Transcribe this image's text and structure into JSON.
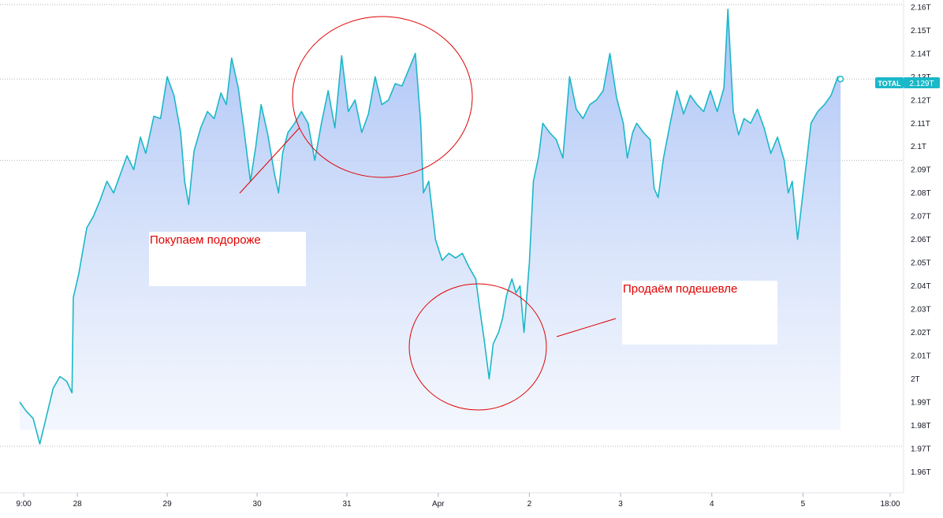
{
  "chart_data": {
    "type": "area",
    "series": [
      {
        "name": "TOTAL",
        "last_value_label": "2.129T",
        "color": "#1ab8c8",
        "points": [
          [
            0,
            1.99
          ],
          [
            0.5,
            1.986
          ],
          [
            1,
            1.983
          ],
          [
            1.5,
            1.972
          ],
          [
            2,
            1.984
          ],
          [
            2.5,
            1.996
          ],
          [
            3,
            2.001
          ],
          [
            3.5,
            1.999
          ],
          [
            3.9,
            1.994
          ],
          [
            4,
            2.035
          ],
          [
            4.4,
            2.045
          ],
          [
            5,
            2.065
          ],
          [
            5.5,
            2.07
          ],
          [
            6,
            2.077
          ],
          [
            6.5,
            2.085
          ],
          [
            7,
            2.08
          ],
          [
            7.5,
            2.088
          ],
          [
            8,
            2.096
          ],
          [
            8.5,
            2.09
          ],
          [
            9,
            2.104
          ],
          [
            9.4,
            2.097
          ],
          [
            10,
            2.113
          ],
          [
            10.5,
            2.112
          ],
          [
            11,
            2.13
          ],
          [
            11.5,
            2.122
          ],
          [
            12,
            2.106
          ],
          [
            12.3,
            2.085
          ],
          [
            12.6,
            2.075
          ],
          [
            13,
            2.098
          ],
          [
            13.5,
            2.108
          ],
          [
            14,
            2.115
          ],
          [
            14.5,
            2.112
          ],
          [
            15,
            2.123
          ],
          [
            15.4,
            2.118
          ],
          [
            15.8,
            2.138
          ],
          [
            16.3,
            2.125
          ],
          [
            16.7,
            2.108
          ],
          [
            17.2,
            2.085
          ],
          [
            17.6,
            2.1
          ],
          [
            18,
            2.118
          ],
          [
            18.5,
            2.105
          ],
          [
            19,
            2.088
          ],
          [
            19.3,
            2.08
          ],
          [
            19.6,
            2.097
          ],
          [
            20,
            2.106
          ],
          [
            20.5,
            2.11
          ],
          [
            21,
            2.115
          ],
          [
            21.5,
            2.11
          ],
          [
            22,
            2.094
          ],
          [
            22.5,
            2.11
          ],
          [
            23,
            2.124
          ],
          [
            23.5,
            2.108
          ],
          [
            24,
            2.139
          ],
          [
            24.5,
            2.115
          ],
          [
            25,
            2.12
          ],
          [
            25.5,
            2.106
          ],
          [
            26,
            2.114
          ],
          [
            26.5,
            2.13
          ],
          [
            27,
            2.118
          ],
          [
            27.5,
            2.12
          ],
          [
            28,
            2.127
          ],
          [
            28.5,
            2.126
          ],
          [
            29,
            2.133
          ],
          [
            29.5,
            2.14
          ],
          [
            29.9,
            2.11
          ],
          [
            30.1,
            2.08
          ],
          [
            30.5,
            2.085
          ],
          [
            31,
            2.06
          ],
          [
            31.5,
            2.051
          ],
          [
            32,
            2.054
          ],
          [
            32.5,
            2.052
          ],
          [
            33,
            2.054
          ],
          [
            33.5,
            2.048
          ],
          [
            34,
            2.043
          ],
          [
            34.3,
            2.03
          ],
          [
            34.6,
            2.018
          ],
          [
            35,
            2.0
          ],
          [
            35.3,
            2.015
          ],
          [
            35.7,
            2.02
          ],
          [
            36,
            2.026
          ],
          [
            36.3,
            2.036
          ],
          [
            36.7,
            2.043
          ],
          [
            37,
            2.037
          ],
          [
            37.3,
            2.04
          ],
          [
            37.6,
            2.02
          ],
          [
            38,
            2.05
          ],
          [
            38.3,
            2.085
          ],
          [
            38.7,
            2.096
          ],
          [
            39,
            2.11
          ],
          [
            39.5,
            2.106
          ],
          [
            40,
            2.103
          ],
          [
            40.5,
            2.095
          ],
          [
            41,
            2.13
          ],
          [
            41.5,
            2.116
          ],
          [
            42,
            2.112
          ],
          [
            42.5,
            2.118
          ],
          [
            43,
            2.12
          ],
          [
            43.5,
            2.124
          ],
          [
            44,
            2.14
          ],
          [
            44.5,
            2.121
          ],
          [
            45,
            2.11
          ],
          [
            45.3,
            2.095
          ],
          [
            45.7,
            2.106
          ],
          [
            46,
            2.11
          ],
          [
            46.5,
            2.106
          ],
          [
            47,
            2.103
          ],
          [
            47.3,
            2.082
          ],
          [
            47.6,
            2.078
          ],
          [
            48,
            2.095
          ],
          [
            48.5,
            2.11
          ],
          [
            49,
            2.124
          ],
          [
            49.5,
            2.114
          ],
          [
            50,
            2.122
          ],
          [
            50.5,
            2.118
          ],
          [
            51,
            2.115
          ],
          [
            51.5,
            2.124
          ],
          [
            52,
            2.115
          ],
          [
            52.5,
            2.125
          ],
          [
            52.8,
            2.159
          ],
          [
            53.2,
            2.115
          ],
          [
            53.6,
            2.105
          ],
          [
            54,
            2.112
          ],
          [
            54.5,
            2.11
          ],
          [
            55,
            2.116
          ],
          [
            55.5,
            2.108
          ],
          [
            56,
            2.097
          ],
          [
            56.5,
            2.104
          ],
          [
            57,
            2.094
          ],
          [
            57.3,
            2.08
          ],
          [
            57.6,
            2.085
          ],
          [
            58,
            2.06
          ],
          [
            58.3,
            2.075
          ],
          [
            58.6,
            2.09
          ],
          [
            59,
            2.11
          ],
          [
            59.5,
            2.115
          ],
          [
            60,
            2.118
          ],
          [
            60.5,
            2.122
          ],
          [
            61,
            2.13
          ],
          [
            61.2,
            2.129
          ]
        ]
      }
    ],
    "x_axis": {
      "ticks": [
        {
          "at": 0.3,
          "label": "9:00"
        },
        {
          "at": 4.3,
          "label": "28"
        },
        {
          "at": 11.0,
          "label": "29"
        },
        {
          "at": 17.7,
          "label": "30"
        },
        {
          "at": 24.4,
          "label": "31"
        },
        {
          "at": 31.2,
          "label": "Apr"
        },
        {
          "at": 38.0,
          "label": "2"
        },
        {
          "at": 44.8,
          "label": "3"
        },
        {
          "at": 51.6,
          "label": "4"
        },
        {
          "at": 58.4,
          "label": "5"
        },
        {
          "at": 64.9,
          "label": "18:00"
        }
      ],
      "xlim": [
        0,
        65.9
      ]
    },
    "y_axis": {
      "ylim": [
        1.951,
        2.163
      ],
      "ticks": [
        {
          "value": 1.96,
          "label": "1.96T"
        },
        {
          "value": 1.97,
          "label": "1.97T"
        },
        {
          "value": 1.98,
          "label": "1.98T"
        },
        {
          "value": 1.99,
          "label": "1.99T"
        },
        {
          "value": 2.0,
          "label": "2T"
        },
        {
          "value": 2.01,
          "label": "2.01T"
        },
        {
          "value": 2.02,
          "label": "2.02T"
        },
        {
          "value": 2.03,
          "label": "2.03T"
        },
        {
          "value": 2.04,
          "label": "2.04T"
        },
        {
          "value": 2.05,
          "label": "2.05T"
        },
        {
          "value": 2.06,
          "label": "2.06T"
        },
        {
          "value": 2.07,
          "label": "2.07T"
        },
        {
          "value": 2.08,
          "label": "2.08T"
        },
        {
          "value": 2.09,
          "label": "2.09T"
        },
        {
          "value": 2.1,
          "label": "2.1T"
        },
        {
          "value": 2.11,
          "label": "2.11T"
        },
        {
          "value": 2.12,
          "label": "2.12T"
        },
        {
          "value": 2.13,
          "label": "2.13T"
        },
        {
          "value": 2.14,
          "label": "2.14T"
        },
        {
          "value": 2.15,
          "label": "2.15T"
        },
        {
          "value": 2.16,
          "label": "2.16T"
        }
      ],
      "position": "right"
    },
    "reference_lines": [
      2.161,
      2.129,
      2.094,
      1.971
    ],
    "grid": false,
    "annotations": [
      {
        "text": "Покупаем подороже",
        "color": "#e00000"
      },
      {
        "text": "Продаём подешевле",
        "color": "#e00000"
      }
    ]
  },
  "colors": {
    "line": "#1ab8c8",
    "fill_top": "#a4bef5",
    "fill_bottom": "#eef3fd",
    "annotation": "#e00000",
    "label_bg": "#1ab8c8",
    "axis_text": "#131722"
  }
}
